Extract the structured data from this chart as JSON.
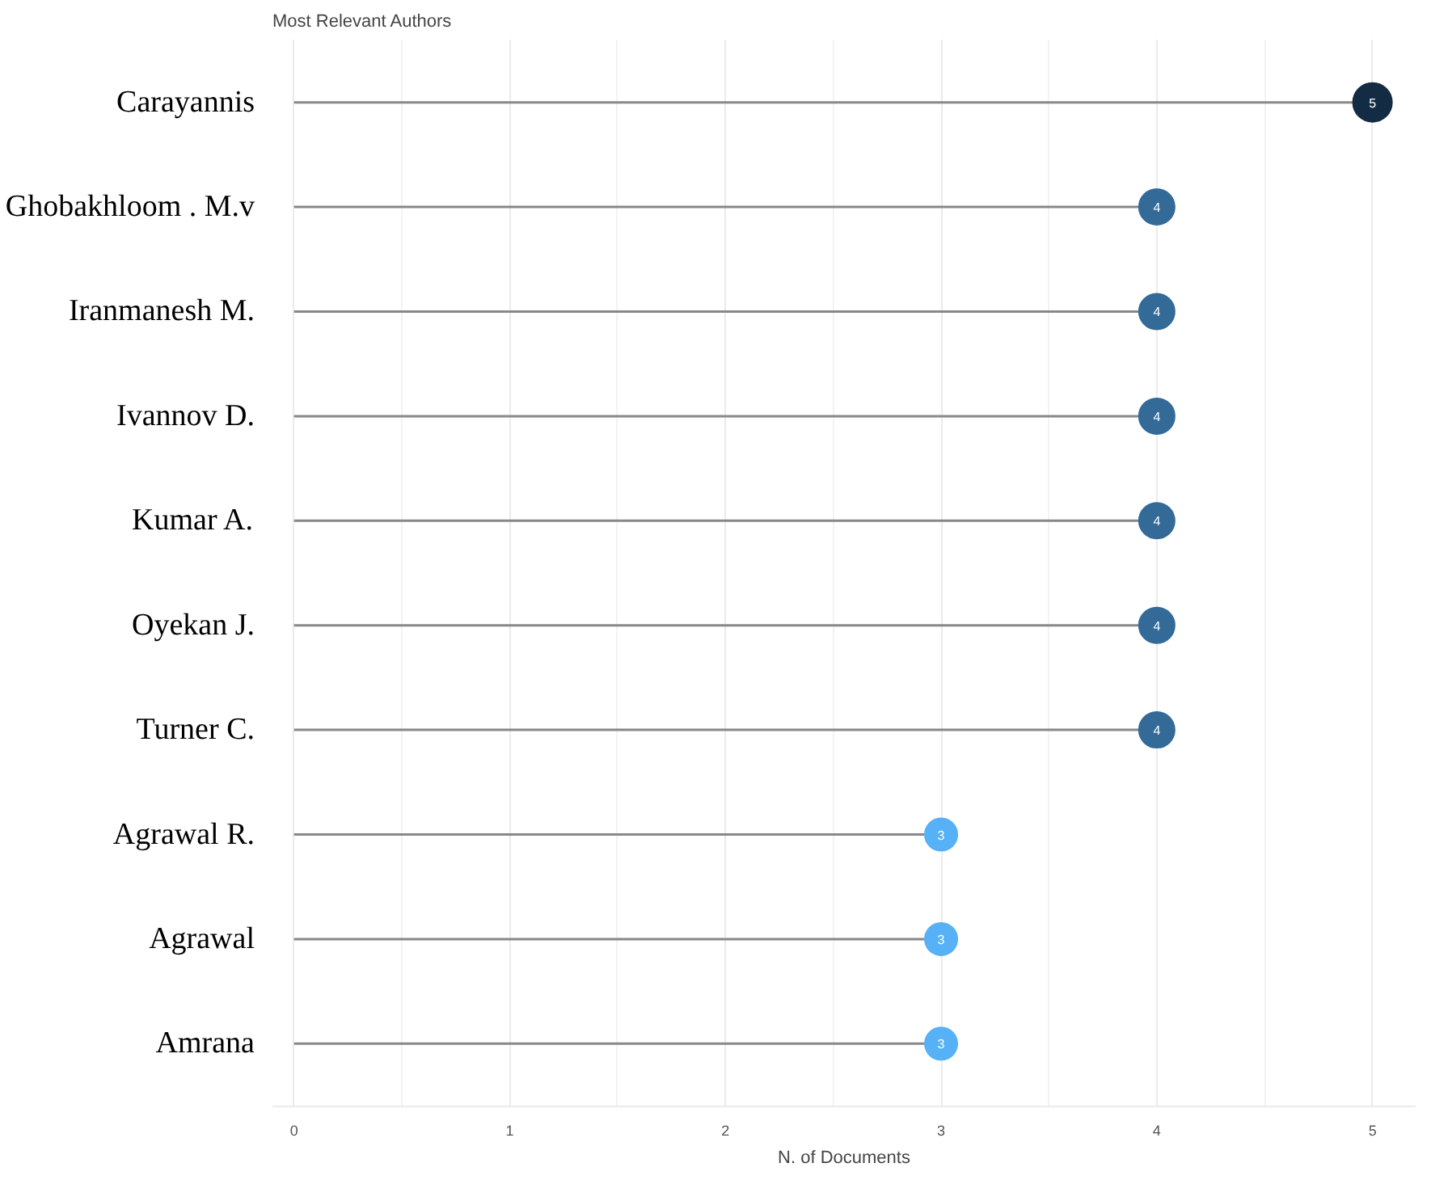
{
  "chart_data": {
    "type": "lollipop",
    "orientation": "horizontal",
    "title": "Most Relevant Authors",
    "xlabel": "N. of Documents",
    "categories": [
      "Carayannis",
      "Ghobakhloom . M.v",
      "Iranmanesh M.",
      "Ivannov D.",
      "Kumar A.",
      "Oyekan J.",
      "Turner C.",
      "Agrawal R.",
      "Agrawal",
      "Amrana"
    ],
    "values": [
      5,
      4,
      4,
      4,
      4,
      4,
      4,
      3,
      3,
      3
    ],
    "colors": [
      "#132b43",
      "#336a98",
      "#336a98",
      "#336a98",
      "#336a98",
      "#336a98",
      "#336a98",
      "#56b1f7",
      "#56b1f7",
      "#56b1f7"
    ],
    "xlim": [
      -0.1,
      5.2
    ],
    "xticks": [
      0,
      1,
      2,
      3,
      4,
      5
    ],
    "grid": "x",
    "data_labels": true
  }
}
